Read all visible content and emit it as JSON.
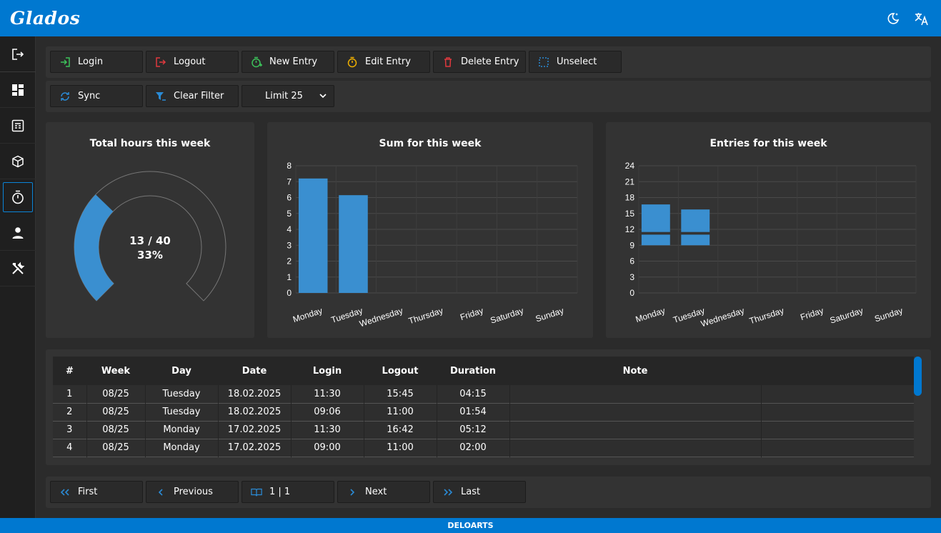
{
  "app": {
    "title": "Glados"
  },
  "colors": {
    "accent": "#0078d0",
    "bar": "#3a8fd0",
    "login": "#3cc15a",
    "logout": "#e0393e",
    "edit": "#f0b000",
    "delete": "#e0393e"
  },
  "header": {
    "icons": [
      "theme-toggle-icon",
      "translate-icon"
    ]
  },
  "sidebar": {
    "items": [
      {
        "name": "logout-icon"
      },
      {
        "name": "dashboard-icon"
      },
      {
        "name": "table-icon"
      },
      {
        "name": "package-icon"
      },
      {
        "name": "timer-icon",
        "active": true
      },
      {
        "name": "user-icon"
      },
      {
        "name": "tools-icon"
      }
    ]
  },
  "toolbar": {
    "login": "Login",
    "logout": "Logout",
    "new_entry": "New Entry",
    "edit_entry": "Edit Entry",
    "delete_entry": "Delete Entry",
    "unselect": "Unselect",
    "sync": "Sync",
    "clear_filter": "Clear Filter",
    "limit": "Limit 25"
  },
  "gauge": {
    "title": "Total hours this week",
    "value": 13,
    "max": 40,
    "label": "13 / 40",
    "percent_label": "33%",
    "fraction": 0.33
  },
  "chart_data": [
    {
      "type": "bar",
      "title": "Sum for this week",
      "categories": [
        "Monday",
        "Tuesday",
        "Wednesday",
        "Thursday",
        "Friday",
        "Saturday",
        "Sunday"
      ],
      "values": [
        7.2,
        6.15,
        0,
        0,
        0,
        0,
        0
      ],
      "ylim": [
        0,
        8
      ],
      "yticks": [
        0,
        1,
        2,
        3,
        4,
        5,
        6,
        7,
        8
      ],
      "grid": true
    },
    {
      "type": "bar",
      "title": "Entries for this week",
      "categories": [
        "Monday",
        "Tuesday",
        "Wednesday",
        "Thursday",
        "Friday",
        "Saturday",
        "Sunday"
      ],
      "ranges": [
        [
          [
            9,
            11
          ],
          [
            11.5,
            16.7
          ]
        ],
        [
          [
            9,
            11
          ],
          [
            11.5,
            15.75
          ]
        ],
        [],
        [],
        [],
        [],
        []
      ],
      "ylim": [
        0,
        24
      ],
      "yticks": [
        0,
        3,
        6,
        9,
        12,
        15,
        18,
        21,
        24
      ],
      "grid": true
    }
  ],
  "table": {
    "headers": [
      "#",
      "Week",
      "Day",
      "Date",
      "Login",
      "Logout",
      "Duration",
      "Note"
    ],
    "rows": [
      [
        "1",
        "08/25",
        "Tuesday",
        "18.02.2025",
        "11:30",
        "15:45",
        "04:15",
        ""
      ],
      [
        "2",
        "08/25",
        "Tuesday",
        "18.02.2025",
        "09:06",
        "11:00",
        "01:54",
        ""
      ],
      [
        "3",
        "08/25",
        "Monday",
        "17.02.2025",
        "11:30",
        "16:42",
        "05:12",
        ""
      ],
      [
        "4",
        "08/25",
        "Monday",
        "17.02.2025",
        "09:00",
        "11:00",
        "02:00",
        ""
      ]
    ]
  },
  "pagination": {
    "first": "First",
    "previous": "Previous",
    "page": "1 | 1",
    "next": "Next",
    "last": "Last"
  },
  "footer": {
    "text": "DELOARTS"
  }
}
